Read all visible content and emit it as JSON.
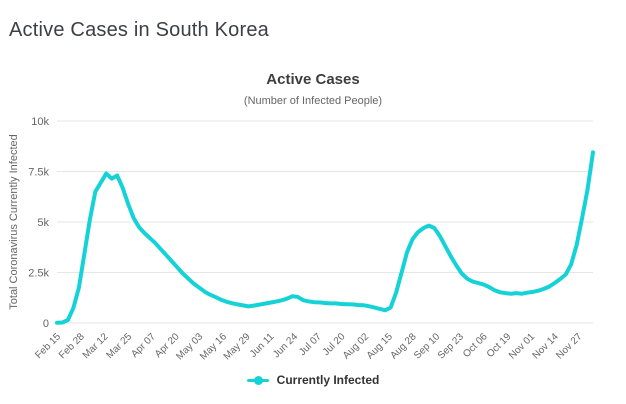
{
  "page": {
    "title": "Active Cases in South Korea"
  },
  "chart": {
    "title": "Active Cases",
    "subtitle": "(Number of Infected People)",
    "y_axis_title": "Total Coronavirus Currently Infected",
    "legend_label": "Currently Infected"
  },
  "colors": {
    "line": "#15d2d7",
    "grid": "#e6e6e6",
    "tick_text": "#666666",
    "chart_title_text": "#3e3e3e",
    "page_title_text": "#3b4046",
    "legend_text": "#333333"
  },
  "chart_data": {
    "type": "line",
    "title": "Active Cases",
    "subtitle": "(Number of Infected People)",
    "xlabel": "",
    "ylabel": "Total Coronavirus Currently Infected",
    "ylim": [
      0,
      10000
    ],
    "grid": "horizontal",
    "legend_position": "bottom",
    "y_ticks": [
      {
        "value": 0,
        "label": "0"
      },
      {
        "value": 2500,
        "label": "2.5k"
      },
      {
        "value": 5000,
        "label": "5k"
      },
      {
        "value": 7500,
        "label": "7.5k"
      },
      {
        "value": 10000,
        "label": "10k"
      }
    ],
    "x_tick_labels": [
      "Feb 15",
      "Feb 28",
      "Mar 12",
      "Mar 25",
      "Apr 07",
      "Apr 20",
      "May 03",
      "May 16",
      "May 29",
      "Jun 11",
      "Jun 24",
      "Jul 07",
      "Jul 20",
      "Aug 02",
      "Aug 15",
      "Aug 28",
      "Sep 10",
      "Sep 23",
      "Oct 06",
      "Oct 19",
      "Nov 01",
      "Nov 14",
      "Nov 27"
    ],
    "x_tick_interval_days": 13,
    "total_days": 294,
    "series": [
      {
        "name": "Currently Infected",
        "color": "#15d2d7",
        "point_interval_days": 3,
        "dates": [
          "Feb 15",
          "Feb 18",
          "Feb 21",
          "Feb 24",
          "Feb 27",
          "Mar 01",
          "Mar 04",
          "Mar 07",
          "Mar 10",
          "Mar 13",
          "Mar 16",
          "Mar 19",
          "Mar 22",
          "Mar 25",
          "Mar 28",
          "Mar 31",
          "Apr 03",
          "Apr 06",
          "Apr 09",
          "Apr 12",
          "Apr 15",
          "Apr 18",
          "Apr 21",
          "Apr 24",
          "Apr 27",
          "Apr 30",
          "May 03",
          "May 06",
          "May 09",
          "May 12",
          "May 15",
          "May 18",
          "May 21",
          "May 24",
          "May 27",
          "May 30",
          "Jun 02",
          "Jun 05",
          "Jun 08",
          "Jun 11",
          "Jun 14",
          "Jun 17",
          "Jun 20",
          "Jun 23",
          "Jun 26",
          "Jun 29",
          "Jul 02",
          "Jul 05",
          "Jul 08",
          "Jul 11",
          "Jul 14",
          "Jul 17",
          "Jul 20",
          "Jul 23",
          "Jul 26",
          "Jul 29",
          "Aug 01",
          "Aug 04",
          "Aug 07",
          "Aug 10",
          "Aug 13",
          "Aug 16",
          "Aug 19",
          "Aug 22",
          "Aug 25",
          "Aug 28",
          "Aug 31",
          "Sep 03",
          "Sep 06",
          "Sep 09",
          "Sep 12",
          "Sep 15",
          "Sep 18",
          "Sep 21",
          "Sep 24",
          "Sep 27",
          "Sep 30",
          "Oct 03",
          "Oct 06",
          "Oct 09",
          "Oct 12",
          "Oct 15",
          "Oct 18",
          "Oct 21",
          "Oct 24",
          "Oct 27",
          "Oct 30",
          "Nov 02",
          "Nov 05",
          "Nov 08",
          "Nov 11",
          "Nov 14",
          "Nov 17",
          "Nov 20",
          "Nov 23",
          "Nov 26",
          "Nov 29",
          "Dec 02",
          "Dec 05"
        ],
        "values": [
          15,
          25,
          150,
          750,
          1750,
          3400,
          5100,
          6500,
          6950,
          7400,
          7150,
          7300,
          6700,
          5900,
          5200,
          4750,
          4450,
          4200,
          3950,
          3650,
          3350,
          3050,
          2750,
          2450,
          2200,
          1950,
          1750,
          1550,
          1400,
          1280,
          1150,
          1050,
          980,
          920,
          870,
          820,
          860,
          910,
          960,
          1010,
          1060,
          1120,
          1200,
          1320,
          1290,
          1130,
          1070,
          1030,
          1020,
          990,
          970,
          970,
          940,
          930,
          920,
          890,
          880,
          830,
          770,
          700,
          630,
          760,
          1500,
          2500,
          3500,
          4150,
          4500,
          4700,
          4820,
          4700,
          4300,
          3800,
          3300,
          2850,
          2450,
          2200,
          2050,
          1980,
          1900,
          1780,
          1620,
          1520,
          1480,
          1450,
          1480,
          1450,
          1500,
          1540,
          1600,
          1690,
          1800,
          1980,
          2180,
          2400,
          2900,
          3850,
          5200,
          6600,
          8450
        ]
      }
    ]
  }
}
